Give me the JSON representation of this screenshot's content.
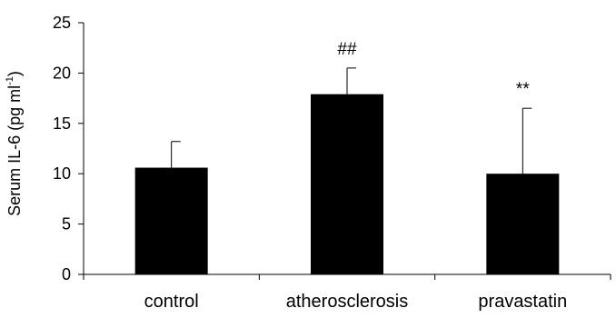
{
  "chart_data": {
    "type": "bar",
    "categories": [
      "control",
      "atherosclerosis",
      "pravastatin"
    ],
    "values": [
      10.6,
      17.9,
      10.0
    ],
    "errors": [
      2.6,
      2.6,
      6.5
    ],
    "annotations": [
      "",
      "##",
      "**"
    ],
    "xlabel": "",
    "ylabel": {
      "main": "Serum IL-6 (pg ml",
      "superscript": "-1",
      "suffix": ")"
    },
    "ylim": [
      0,
      25
    ],
    "yticks": [
      0,
      5,
      10,
      15,
      20,
      25
    ],
    "grid": false,
    "legend": "none",
    "bar_color": "#000000"
  }
}
